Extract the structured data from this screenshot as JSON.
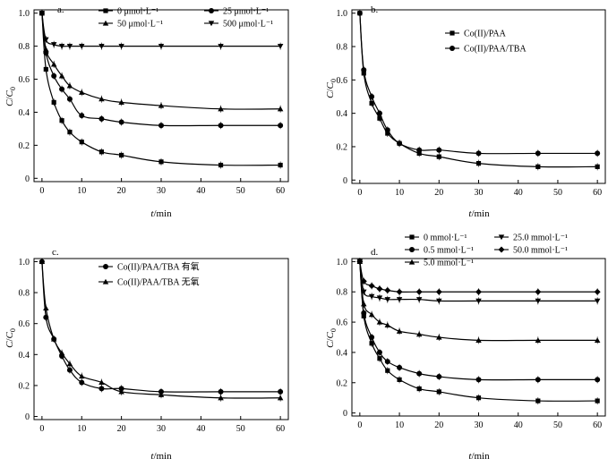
{
  "figure_title": "",
  "chart_data": [
    {
      "id": "a",
      "type": "line",
      "panel_label": "a.",
      "xlabel": "t/min",
      "ylabel": "C/C0",
      "xlim": [
        -2,
        62
      ],
      "ylim": [
        -0.02,
        1.02
      ],
      "xticks": [
        0,
        10,
        20,
        30,
        40,
        50,
        60
      ],
      "yticks": [
        0,
        0.2,
        0.4,
        0.6,
        0.8,
        1.0
      ],
      "ytick_labels": [
        "0",
        "0.2",
        "0.4",
        "0.6",
        "0.8",
        "1.0"
      ],
      "x": [
        0,
        1,
        3,
        5,
        7,
        10,
        15,
        20,
        30,
        45,
        60
      ],
      "series": [
        {
          "name": "0 μmol·L⁻¹",
          "marker": "square",
          "values": [
            1.0,
            0.66,
            0.46,
            0.35,
            0.28,
            0.22,
            0.16,
            0.14,
            0.1,
            0.08,
            0.08
          ]
        },
        {
          "name": "25 μmol·L⁻¹",
          "marker": "circle",
          "values": [
            1.0,
            0.76,
            0.62,
            0.54,
            0.48,
            0.38,
            0.36,
            0.34,
            0.32,
            0.32,
            0.32
          ]
        },
        {
          "name": "50 μmol·L⁻¹",
          "marker": "triangle-up",
          "values": [
            1.0,
            0.78,
            0.69,
            0.62,
            0.56,
            0.52,
            0.48,
            0.46,
            0.44,
            0.42,
            0.42
          ]
        },
        {
          "name": "500 μmol·L⁻¹",
          "marker": "triangle-down",
          "values": [
            1.0,
            0.84,
            0.81,
            0.8,
            0.8,
            0.8,
            0.8,
            0.8,
            0.8,
            0.8,
            0.8
          ]
        }
      ],
      "legend": "top-right, 2 columns"
    },
    {
      "id": "b",
      "type": "line",
      "panel_label": "b.",
      "xlabel": "t/min",
      "ylabel": "C/C0",
      "xlim": [
        -2,
        62
      ],
      "ylim": [
        -0.02,
        1.02
      ],
      "xticks": [
        0,
        10,
        20,
        30,
        40,
        50,
        60
      ],
      "yticks": [
        0,
        0.2,
        0.4,
        0.6,
        0.8,
        1.0
      ],
      "ytick_labels": [
        "0",
        "0.2",
        "0.4",
        "0.6",
        "0.8",
        "1.0"
      ],
      "x": [
        0,
        1,
        3,
        5,
        7,
        10,
        15,
        20,
        30,
        45,
        60
      ],
      "series": [
        {
          "name": "Co(II)/PAA",
          "marker": "square",
          "values": [
            1.0,
            0.64,
            0.46,
            0.37,
            0.28,
            0.22,
            0.16,
            0.14,
            0.1,
            0.08,
            0.08
          ]
        },
        {
          "name": "Co(II)/PAA/TBA",
          "marker": "circle",
          "values": [
            1.0,
            0.66,
            0.5,
            0.4,
            0.3,
            0.22,
            0.18,
            0.18,
            0.16,
            0.16,
            0.16
          ]
        }
      ],
      "legend": "top, 1 column"
    },
    {
      "id": "c",
      "type": "line",
      "panel_label": "c.",
      "xlabel": "t/min",
      "ylabel": "C/C0",
      "xlim": [
        -2,
        62
      ],
      "ylim": [
        -0.02,
        1.02
      ],
      "xticks": [
        0,
        10,
        20,
        30,
        40,
        50,
        60
      ],
      "yticks": [
        0,
        0.2,
        0.4,
        0.6,
        0.8,
        1.0
      ],
      "ytick_labels": [
        "0",
        "0.2",
        "0.4",
        "0.6",
        "0.8",
        "1.0"
      ],
      "x": [
        0,
        1,
        3,
        5,
        7,
        10,
        15,
        20,
        30,
        45,
        60
      ],
      "series": [
        {
          "name": "Co(II)/PAA/TBA 有氧",
          "marker": "circle",
          "values": [
            1.0,
            0.64,
            0.5,
            0.39,
            0.3,
            0.22,
            0.18,
            0.18,
            0.16,
            0.16,
            0.16
          ]
        },
        {
          "name": "Co(II)/PAA/TBA 无氧",
          "marker": "triangle-up",
          "values": [
            1.0,
            0.7,
            0.5,
            0.41,
            0.34,
            0.26,
            0.22,
            0.16,
            0.14,
            0.12,
            0.12
          ]
        }
      ],
      "legend": "top, 1 column"
    },
    {
      "id": "d",
      "type": "line",
      "panel_label": "d.",
      "xlabel": "t/min",
      "ylabel": "C/C0",
      "xlim": [
        -2,
        62
      ],
      "ylim": [
        -0.02,
        1.02
      ],
      "xticks": [
        0,
        10,
        20,
        30,
        40,
        50,
        60
      ],
      "yticks": [
        0,
        0.2,
        0.4,
        0.6,
        0.8,
        1.0
      ],
      "ytick_labels": [
        "0",
        "0.2",
        "0.4",
        "0.6",
        "0.8",
        "1.0"
      ],
      "x": [
        0,
        1,
        3,
        5,
        7,
        10,
        15,
        20,
        30,
        45,
        60
      ],
      "series": [
        {
          "name": "0 mmol·L⁻¹",
          "marker": "square",
          "values": [
            1.0,
            0.64,
            0.46,
            0.36,
            0.28,
            0.22,
            0.16,
            0.14,
            0.1,
            0.08,
            0.08
          ]
        },
        {
          "name": "0.5 mmol·L⁻¹",
          "marker": "circle",
          "values": [
            1.0,
            0.66,
            0.5,
            0.4,
            0.34,
            0.3,
            0.26,
            0.24,
            0.22,
            0.22,
            0.22
          ]
        },
        {
          "name": "5.0 mmol·L⁻¹",
          "marker": "triangle-up",
          "values": [
            1.0,
            0.72,
            0.65,
            0.6,
            0.58,
            0.54,
            0.52,
            0.5,
            0.48,
            0.48,
            0.48
          ]
        },
        {
          "name": "25.0 mmol·L⁻¹",
          "marker": "triangle-down",
          "values": [
            1.0,
            0.8,
            0.77,
            0.76,
            0.75,
            0.75,
            0.75,
            0.74,
            0.74,
            0.74,
            0.74
          ]
        },
        {
          "name": "50.0 mmol·L⁻¹",
          "marker": "diamond",
          "values": [
            1.0,
            0.87,
            0.84,
            0.82,
            0.81,
            0.8,
            0.8,
            0.8,
            0.8,
            0.8,
            0.8
          ]
        }
      ],
      "legend": "top-right, 2 columns"
    }
  ]
}
